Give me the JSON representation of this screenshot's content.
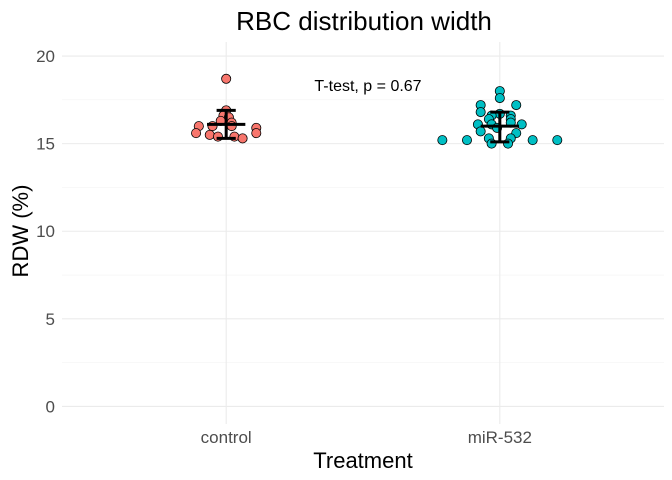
{
  "chart_data": {
    "type": "scatter",
    "title": "RBC distribution width",
    "xlabel": "Treatment",
    "ylabel": "RDW (%)",
    "categories": [
      "control",
      "miR-532"
    ],
    "ylim": [
      -1,
      20.8
    ],
    "yticks": [
      0,
      5,
      10,
      15,
      20
    ],
    "grid": true,
    "annotation": "T-test, p = 0.67",
    "colors": {
      "control": "#F8766D",
      "miR-532": "#00BFC4"
    },
    "series": [
      {
        "name": "control",
        "points": [
          {
            "dx": 0.0,
            "y": 18.7
          },
          {
            "dx": 0.0,
            "y": 16.9
          },
          {
            "dx": -0.01,
            "y": 16.6
          },
          {
            "dx": 0.01,
            "y": 16.5
          },
          {
            "dx": -0.02,
            "y": 16.3
          },
          {
            "dx": 0.02,
            "y": 16.2
          },
          {
            "dx": -0.1,
            "y": 16.0
          },
          {
            "dx": -0.05,
            "y": 16.0
          },
          {
            "dx": 0.02,
            "y": 16.0
          },
          {
            "dx": 0.11,
            "y": 15.9
          },
          {
            "dx": -0.11,
            "y": 15.6
          },
          {
            "dx": 0.11,
            "y": 15.6
          },
          {
            "dx": -0.06,
            "y": 15.5
          },
          {
            "dx": -0.03,
            "y": 15.4
          },
          {
            "dx": 0.03,
            "y": 15.4
          },
          {
            "dx": 0.06,
            "y": 15.3
          }
        ],
        "mean": 16.1,
        "sd_low": 15.3,
        "sd_high": 16.9
      },
      {
        "name": "miR-532",
        "points": [
          {
            "dx": 0.0,
            "y": 18.0
          },
          {
            "dx": 0.0,
            "y": 17.6
          },
          {
            "dx": -0.07,
            "y": 17.2
          },
          {
            "dx": 0.06,
            "y": 17.2
          },
          {
            "dx": -0.07,
            "y": 16.8
          },
          {
            "dx": 0.0,
            "y": 16.7
          },
          {
            "dx": -0.03,
            "y": 16.6
          },
          {
            "dx": 0.04,
            "y": 16.6
          },
          {
            "dx": -0.04,
            "y": 16.4
          },
          {
            "dx": 0.04,
            "y": 16.4
          },
          {
            "dx": -0.08,
            "y": 16.1
          },
          {
            "dx": -0.03,
            "y": 16.1
          },
          {
            "dx": 0.04,
            "y": 16.2
          },
          {
            "dx": 0.08,
            "y": 16.1
          },
          {
            "dx": -0.01,
            "y": 15.9
          },
          {
            "dx": -0.07,
            "y": 15.7
          },
          {
            "dx": 0.06,
            "y": 15.6
          },
          {
            "dx": -0.21,
            "y": 15.2
          },
          {
            "dx": -0.12,
            "y": 15.2
          },
          {
            "dx": -0.04,
            "y": 15.3
          },
          {
            "dx": 0.04,
            "y": 15.3
          },
          {
            "dx": 0.12,
            "y": 15.2
          },
          {
            "dx": 0.21,
            "y": 15.2
          },
          {
            "dx": -0.03,
            "y": 15.0
          },
          {
            "dx": 0.03,
            "y": 15.0
          }
        ],
        "mean": 16.0,
        "sd_low": 15.1,
        "sd_high": 16.8
      }
    ]
  }
}
